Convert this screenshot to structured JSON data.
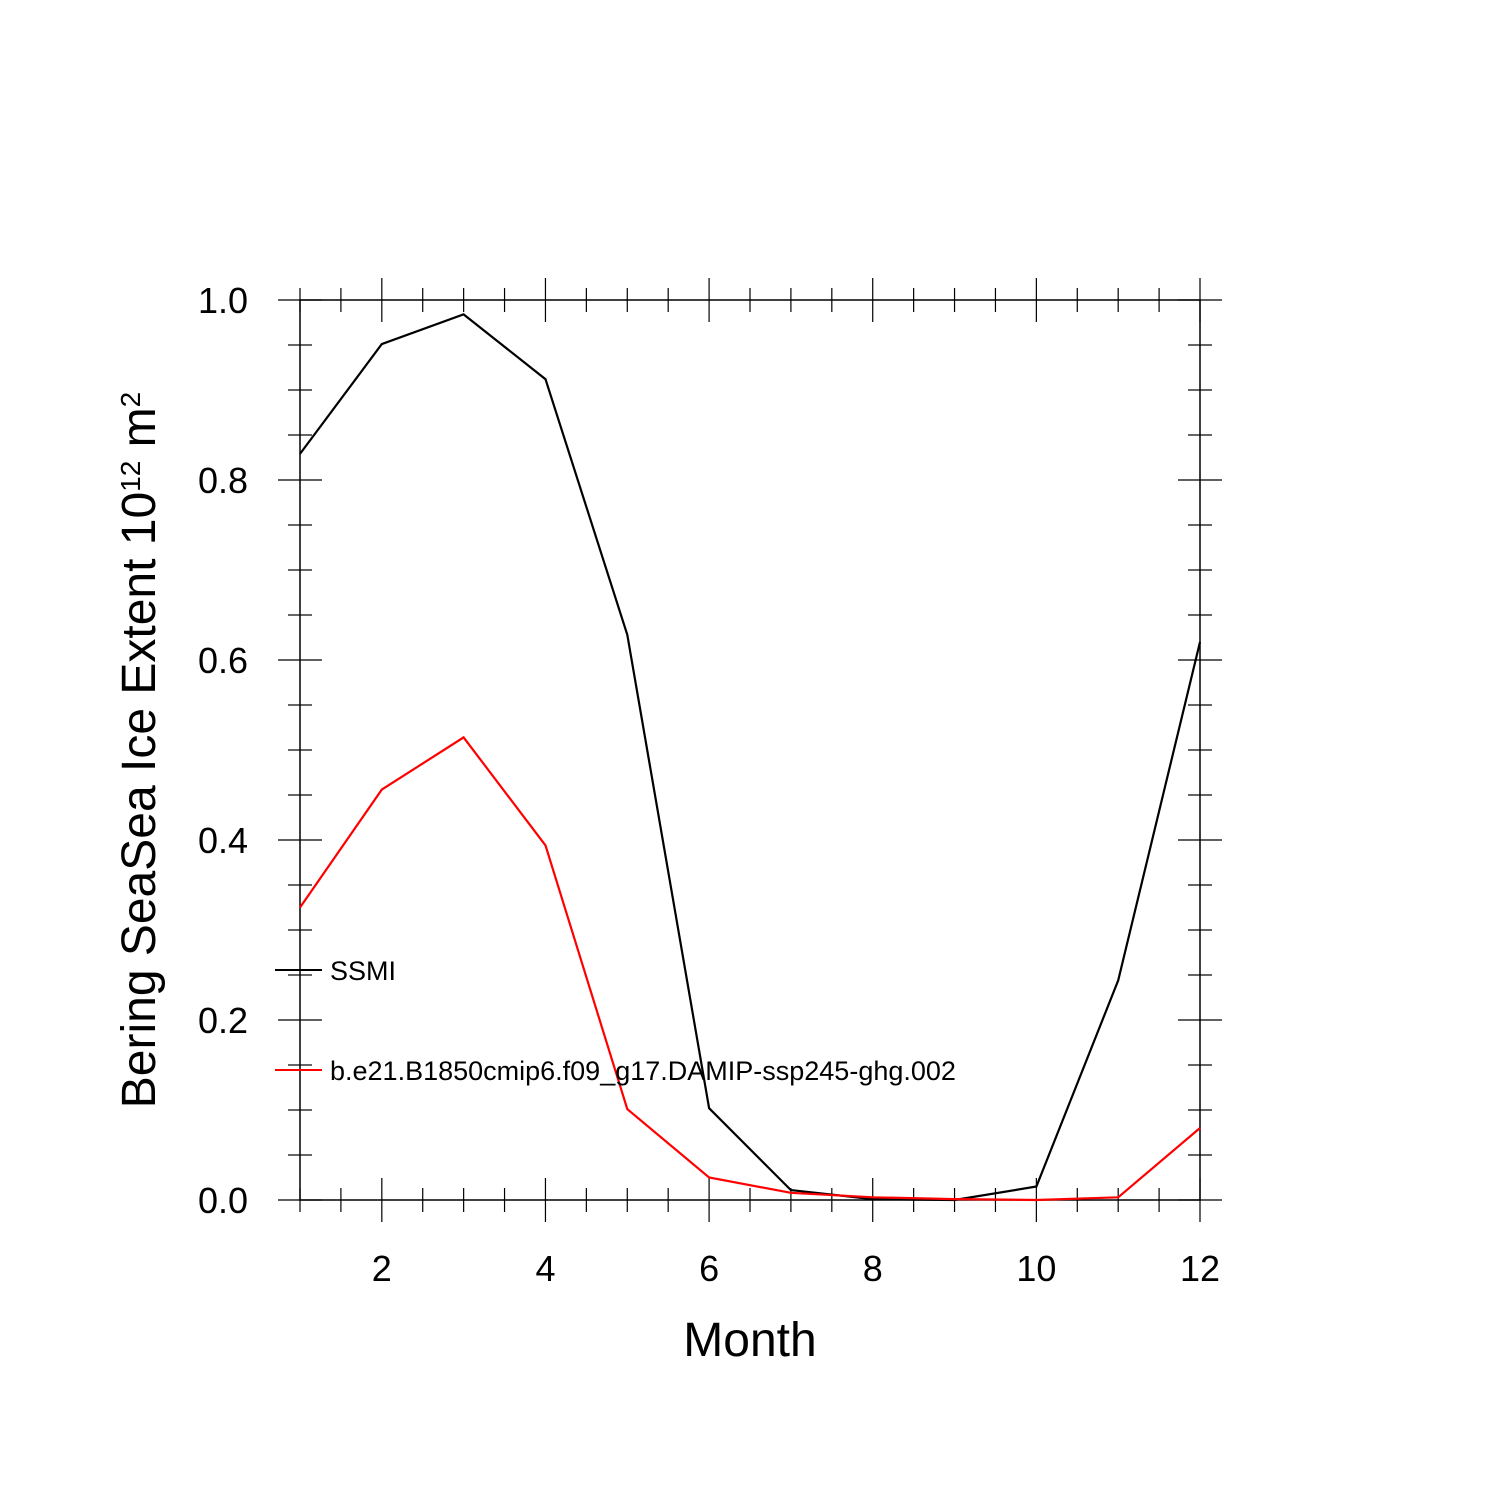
{
  "chart_data": {
    "type": "line",
    "xlabel": "Month",
    "ylabel": {
      "main": "Bering SeaSea Ice Extent 10",
      "exponent": "12",
      "unit": " m",
      "unit_exponent": "2"
    },
    "xlim": [
      1,
      12
    ],
    "ylim": [
      0,
      1.0
    ],
    "xticks": [
      2,
      4,
      6,
      8,
      10,
      12
    ],
    "xtick_labels": [
      "2",
      "4",
      "6",
      "8",
      "10",
      "12"
    ],
    "yticks": [
      0,
      0.2,
      0.4,
      0.6,
      0.8,
      1.0
    ],
    "ytick_labels": [
      "0.0",
      "0.2",
      "0.4",
      "0.6",
      "0.8",
      "1.0"
    ],
    "grid": false,
    "legend_position": "left-inside",
    "x": [
      1,
      2,
      3,
      4,
      5,
      6,
      7,
      8,
      9,
      10,
      11,
      12
    ],
    "series": [
      {
        "name": "SSMI",
        "color": "#000000",
        "values": [
          0.829,
          0.951,
          0.984,
          0.912,
          0.628,
          0.102,
          0.011,
          0.001,
          0.0,
          0.015,
          0.244,
          0.62
        ]
      },
      {
        "name": "b.e21.B1850cmip6.f09_g17.DAMIP-ssp245-ghg.002",
        "color": "#ff0000",
        "values": [
          0.325,
          0.456,
          0.514,
          0.394,
          0.101,
          0.025,
          0.008,
          0.003,
          0.001,
          0.0,
          0.003,
          0.08
        ]
      }
    ]
  }
}
